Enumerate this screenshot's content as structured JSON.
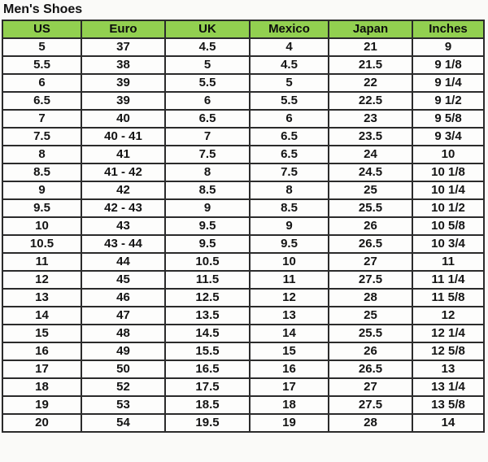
{
  "title": "Men's Shoes",
  "colors": {
    "header_bg": "#92d050",
    "border": "#2b2b2b",
    "page_bg": "#fafaf8",
    "cell_bg": "#fdfdfc",
    "text": "#111111"
  },
  "table": {
    "columns": [
      "US",
      "Euro",
      "UK",
      "Mexico",
      "Japan",
      "Inches"
    ],
    "rows": [
      [
        "5",
        "37",
        "4.5",
        "4",
        "21",
        "9"
      ],
      [
        "5.5",
        "38",
        "5",
        "4.5",
        "21.5",
        "9 1/8"
      ],
      [
        "6",
        "39",
        "5.5",
        "5",
        "22",
        "9 1/4"
      ],
      [
        "6.5",
        "39",
        "6",
        "5.5",
        "22.5",
        "9 1/2"
      ],
      [
        "7",
        "40",
        "6.5",
        "6",
        "23",
        "9 5/8"
      ],
      [
        "7.5",
        "40 - 41",
        "7",
        "6.5",
        "23.5",
        "9 3/4"
      ],
      [
        "8",
        "41",
        "7.5",
        "6.5",
        "24",
        "10"
      ],
      [
        "8.5",
        "41 - 42",
        "8",
        "7.5",
        "24.5",
        "10 1/8"
      ],
      [
        "9",
        "42",
        "8.5",
        "8",
        "25",
        "10 1/4"
      ],
      [
        "9.5",
        "42 - 43",
        "9",
        "8.5",
        "25.5",
        "10 1/2"
      ],
      [
        "10",
        "43",
        "9.5",
        "9",
        "26",
        "10 5/8"
      ],
      [
        "10.5",
        "43 - 44",
        "9.5",
        "9.5",
        "26.5",
        "10 3/4"
      ],
      [
        "11",
        "44",
        "10.5",
        "10",
        "27",
        "11"
      ],
      [
        "12",
        "45",
        "11.5",
        "11",
        "27.5",
        "11 1/4"
      ],
      [
        "13",
        "46",
        "12.5",
        "12",
        "28",
        "11 5/8"
      ],
      [
        "14",
        "47",
        "13.5",
        "13",
        "25",
        "12"
      ],
      [
        "15",
        "48",
        "14.5",
        "14",
        "25.5",
        "12 1/4"
      ],
      [
        "16",
        "49",
        "15.5",
        "15",
        "26",
        "12 5/8"
      ],
      [
        "17",
        "50",
        "16.5",
        "16",
        "26.5",
        "13"
      ],
      [
        "18",
        "52",
        "17.5",
        "17",
        "27",
        "13 1/4"
      ],
      [
        "19",
        "53",
        "18.5",
        "18",
        "27.5",
        "13 5/8"
      ],
      [
        "20",
        "54",
        "19.5",
        "19",
        "28",
        "14"
      ]
    ]
  }
}
